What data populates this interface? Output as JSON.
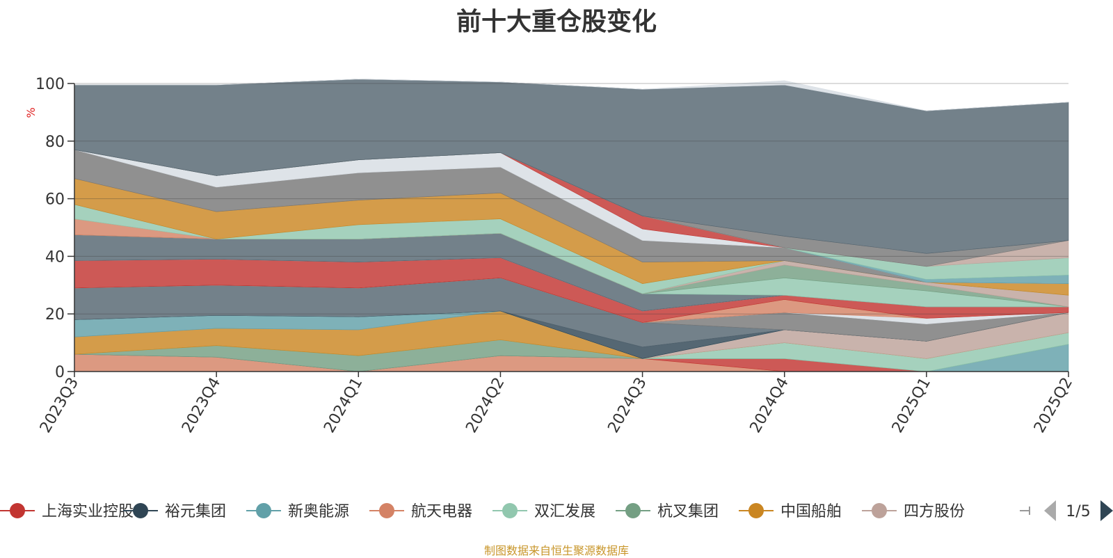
{
  "title": "前十大重仓股变化",
  "source": "制图数据来自恒生聚源数据库",
  "legend": {
    "page": "1/5",
    "items": [
      {
        "name": "上海实业控股",
        "color": "#c23531"
      },
      {
        "name": "裕元集团",
        "color": "#2f4554"
      },
      {
        "name": "新奥能源",
        "color": "#61a0a8"
      },
      {
        "name": "航天电器",
        "color": "#d48265"
      },
      {
        "name": "双汇发展",
        "color": "#91c7ae"
      },
      {
        "name": "杭叉集团",
        "color": "#749f83"
      },
      {
        "name": "中国船舶",
        "color": "#ca8622"
      },
      {
        "name": "四方股份",
        "color": "#bda29a"
      }
    ]
  },
  "chart_data": {
    "type": "area",
    "stacked": true,
    "ylabel": "%",
    "ylim": [
      0,
      100
    ],
    "yticks": [
      0,
      20,
      40,
      60,
      80,
      100
    ],
    "categories": [
      "2023Q3",
      "2023Q4",
      "2024Q1",
      "2024Q2",
      "2024Q3",
      "2024Q4",
      "2025Q1",
      "2025Q2"
    ],
    "series": [
      {
        "color": "#d48265",
        "values": [
          6,
          5,
          0,
          5.5,
          4.5,
          0,
          0,
          0
        ]
      },
      {
        "color": "#c23531",
        "values": [
          0,
          0,
          0,
          0,
          0,
          4.5,
          0,
          0
        ]
      },
      {
        "color": "#61a0a8",
        "values": [
          0,
          0,
          0,
          0,
          0,
          0,
          0,
          9.5
        ]
      },
      {
        "color": "#749f83",
        "values": [
          0,
          4,
          5.5,
          5.5,
          0,
          0,
          0,
          0
        ]
      },
      {
        "color": "#91c7ae",
        "values": [
          0,
          0,
          0,
          0,
          0,
          5.5,
          4.5,
          4
        ]
      },
      {
        "color": "#ca8622",
        "values": [
          6,
          6,
          9,
          10,
          0,
          0,
          0,
          0
        ]
      },
      {
        "color": "#bda29a",
        "values": [
          0,
          0,
          0,
          0,
          0,
          4.5,
          6,
          7
        ]
      },
      {
        "color": "#61a0a8",
        "values": [
          6,
          4.5,
          4.5,
          0,
          0,
          0,
          0,
          0
        ]
      },
      {
        "color": "#2f4554",
        "values": [
          0,
          0,
          0,
          0,
          4,
          0,
          0,
          0
        ]
      },
      {
        "color": "#546570",
        "values": [
          11,
          10.5,
          10,
          11.5,
          8.5,
          0,
          0,
          0
        ]
      },
      {
        "color": "#787878",
        "values": [
          0,
          0,
          0,
          0,
          0,
          6,
          6,
          0
        ]
      },
      {
        "color": "#d7dde3",
        "values": [
          0,
          0,
          0,
          0,
          0,
          0,
          2,
          0
        ]
      },
      {
        "color": "#d48265",
        "values": [
          0,
          0,
          0,
          0,
          0,
          4.5,
          0,
          0
        ]
      },
      {
        "color": "#c23531",
        "values": [
          9.5,
          9,
          9,
          7,
          4,
          1.5,
          4,
          2
        ]
      },
      {
        "color": "#d7dde3",
        "values": [
          0,
          0,
          0,
          0,
          0,
          0,
          0,
          0
        ]
      },
      {
        "color": "#546570",
        "values": [
          9,
          7,
          8,
          8.5,
          6,
          0,
          0,
          0
        ]
      },
      {
        "color": "#91c7ae",
        "values": [
          0,
          0,
          0,
          0,
          0,
          6,
          5.5,
          0
        ]
      },
      {
        "color": "#749f83",
        "values": [
          0,
          0,
          0,
          0,
          0,
          4.5,
          2,
          0
        ]
      },
      {
        "color": "#bda29a",
        "values": [
          0,
          0,
          0,
          0,
          0,
          1.5,
          1,
          4
        ]
      },
      {
        "color": "#d48265",
        "values": [
          5.5,
          0,
          0,
          0,
          0,
          0,
          0,
          0
        ]
      },
      {
        "color": "#91c7ae",
        "values": [
          5,
          0,
          5,
          5,
          3.5,
          0,
          0,
          0
        ]
      },
      {
        "color": "#ca8622",
        "values": [
          9,
          9.5,
          8.5,
          9,
          7.5,
          0,
          0,
          4
        ]
      },
      {
        "color": "#787878",
        "values": [
          10,
          8.5,
          9.5,
          9,
          7.5,
          4.5,
          0,
          0
        ]
      },
      {
        "color": "#d7dde3",
        "values": [
          0,
          4,
          4.5,
          5,
          4,
          0,
          0,
          0
        ]
      },
      {
        "color": "#c23531",
        "values": [
          0,
          0,
          0,
          0,
          4.5,
          0,
          0,
          0
        ]
      },
      {
        "color": "#d7dde3",
        "values": [
          0,
          0,
          0,
          0,
          0,
          0,
          0,
          0
        ]
      },
      {
        "color": "#61a0a8",
        "values": [
          0,
          0,
          0,
          0,
          0,
          0,
          1,
          3
        ]
      },
      {
        "color": "#91c7ae",
        "values": [
          0,
          0,
          0,
          0,
          0,
          0,
          4.5,
          6
        ]
      },
      {
        "color": "#bda29a",
        "values": [
          0,
          0,
          0,
          0,
          0,
          0,
          0,
          6
        ]
      },
      {
        "color": "#787878",
        "values": [
          0,
          0,
          0,
          0,
          0,
          4,
          4.5,
          0
        ]
      },
      {
        "color": "#546570",
        "values": [
          22.5,
          31.5,
          28,
          24.5,
          44,
          52.5,
          49.5,
          48
        ]
      },
      {
        "color": "#d7dde3",
        "values": [
          0,
          0,
          0,
          0,
          0,
          1.5,
          0,
          0
        ]
      }
    ]
  }
}
